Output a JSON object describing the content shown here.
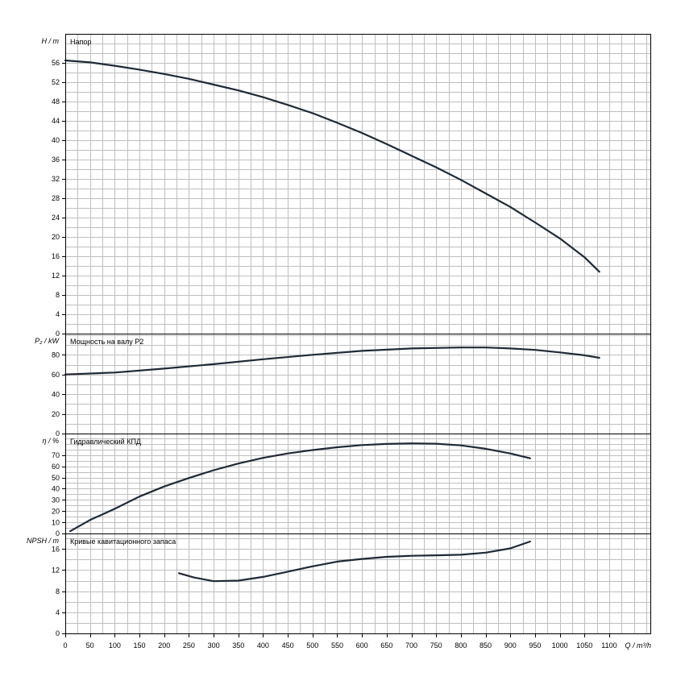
{
  "chart_data": {
    "type": "line",
    "x": {
      "label": "Q / m³/h",
      "range": [
        0,
        1180
      ],
      "ticks": [
        0,
        50,
        100,
        150,
        200,
        250,
        300,
        350,
        400,
        450,
        500,
        550,
        600,
        650,
        700,
        750,
        800,
        850,
        900,
        950,
        1000,
        1050,
        1100
      ]
    },
    "panels": [
      {
        "id": "head",
        "title": "Напор",
        "ylabel": "H / m",
        "ylim": [
          0,
          62
        ],
        "yticks": [
          0,
          4,
          8,
          12,
          16,
          20,
          24,
          28,
          32,
          36,
          40,
          44,
          48,
          52,
          56
        ],
        "grid_step": 2,
        "series": [
          {
            "x": [
              0,
              50,
              100,
              150,
              200,
              250,
              300,
              350,
              400,
              450,
              500,
              550,
              600,
              650,
              700,
              750,
              800,
              850,
              900,
              950,
              1000,
              1050,
              1080
            ],
            "y": [
              56.5,
              56.1,
              55.4,
              54.6,
              53.7,
              52.7,
              51.5,
              50.3,
              48.9,
              47.3,
              45.6,
              43.6,
              41.5,
              39.2,
              36.8,
              34.4,
              31.8,
              29.0,
              26.2,
              23.0,
              19.7,
              15.8,
              12.8
            ]
          }
        ]
      },
      {
        "id": "power",
        "title": "Мощность на валу P2",
        "ylabel": "P₂ / kW",
        "ylim": [
          0,
          98
        ],
        "yticks": [
          0,
          20,
          40,
          60,
          80
        ],
        "grid_step": 10,
        "series": [
          {
            "x": [
              0,
              100,
              200,
              300,
              400,
              500,
              600,
              700,
              800,
              850,
              900,
              950,
              1000,
              1050,
              1080
            ],
            "y": [
              60,
              62,
              66,
              70.5,
              75.5,
              80,
              84,
              86.5,
              87.5,
              87.5,
              86.5,
              85,
              82.5,
              79.5,
              77
            ]
          }
        ]
      },
      {
        "id": "efficiency",
        "title": "Гидравлический КПД",
        "ylabel": "η / %",
        "ylim": [
          0,
          86
        ],
        "yticks": [
          0,
          10,
          20,
          30,
          40,
          50,
          60,
          70
        ],
        "grid_step": 5,
        "series": [
          {
            "x": [
              10,
              50,
              100,
              150,
              200,
              250,
              300,
              350,
              400,
              450,
              500,
              550,
              600,
              650,
              700,
              750,
              800,
              850,
              900,
              940
            ],
            "y": [
              2,
              12,
              22,
              33,
              42,
              49.5,
              56.5,
              62.5,
              67.5,
              71.5,
              74.5,
              77,
              79,
              80,
              80.5,
              80.2,
              78.7,
              75.7,
              71.5,
              67.2
            ]
          }
        ]
      },
      {
        "id": "npsh",
        "title": "Кривые кавитационного запаса",
        "ylabel": "NPSH / m",
        "ylim": [
          0,
          19
        ],
        "yticks": [
          0,
          4,
          8,
          12,
          16
        ],
        "grid_step": 2,
        "series": [
          {
            "x": [
              230,
              260,
              300,
              350,
              400,
              450,
              500,
              550,
              600,
              650,
              700,
              750,
              800,
              850,
              900,
              940
            ],
            "y": [
              11.4,
              10.6,
              9.9,
              10.0,
              10.7,
              11.7,
              12.7,
              13.6,
              14.1,
              14.5,
              14.7,
              14.8,
              14.9,
              15.3,
              16.1,
              17.4
            ]
          }
        ]
      }
    ]
  }
}
